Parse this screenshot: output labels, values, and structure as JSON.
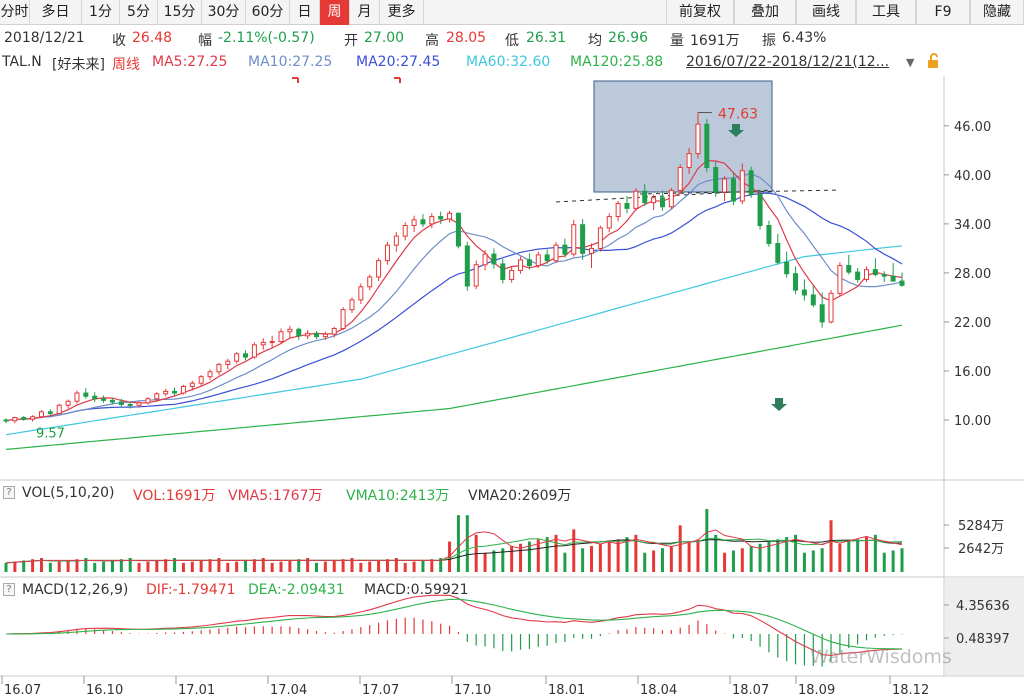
{
  "toolbar": {
    "tabs": [
      {
        "label": "分时",
        "name": "tab-timeshare"
      },
      {
        "label": "多日",
        "name": "tab-multiday"
      },
      {
        "label": "1分",
        "name": "tab-1min"
      },
      {
        "label": "5分",
        "name": "tab-5min"
      },
      {
        "label": "15分",
        "name": "tab-15min"
      },
      {
        "label": "30分",
        "name": "tab-30min"
      },
      {
        "label": "60分",
        "name": "tab-60min"
      },
      {
        "label": "日",
        "name": "tab-day"
      },
      {
        "label": "周",
        "name": "tab-week",
        "active": true
      },
      {
        "label": "月",
        "name": "tab-month"
      },
      {
        "label": "更多",
        "name": "tab-more"
      }
    ],
    "right_buttons": [
      {
        "label": "前复权",
        "name": "forward-adjust-button"
      },
      {
        "label": "叠加",
        "name": "overlay-button"
      },
      {
        "label": "画线",
        "name": "draw-line-button"
      },
      {
        "label": "工具",
        "name": "tools-button"
      },
      {
        "label": "F9",
        "name": "f9-button"
      },
      {
        "label": "隐藏",
        "name": "hide-button"
      }
    ]
  },
  "quote": {
    "date": "2018/12/21",
    "close_label": "收",
    "close": "26.48",
    "change_label": "幅",
    "change": "-2.11%(-0.57)",
    "open_label": "开",
    "open": "27.00",
    "high_label": "高",
    "high": "28.05",
    "low_label": "低",
    "low": "26.31",
    "avg_label": "均",
    "avg": "26.96",
    "vol_label": "量",
    "vol": "1691万",
    "amp_label": "振",
    "amp": "6.43%"
  },
  "ma_legend": {
    "symbol": "TAL.N",
    "name": "[好未来]",
    "period": "周线",
    "ma5": "MA5:27.25",
    "ma10": "MA10:27.25",
    "ma20": "MA20:27.45",
    "ma60": "MA60:32.60",
    "ma120": "MA120:25.88",
    "range": "2016/07/22-2018/12/21(12..."
  },
  "price_axis": {
    "ticks": [
      "46.00",
      "40.00",
      "34.00",
      "28.00",
      "22.00",
      "16.00",
      "10.00"
    ],
    "tick_values": [
      46,
      40,
      34,
      28,
      22,
      16,
      10
    ],
    "ylim": [
      2.9,
      52.1
    ]
  },
  "annotations": {
    "high_label": "47.63",
    "low_label": "9.57"
  },
  "vol_panel": {
    "head": "VOL(5,10,20)",
    "vol": "VOL:1691万",
    "vma5": "VMA5:1767万",
    "vma10": "VMA10:2413万",
    "vma20": "VMA20:2609万",
    "ticks": [
      "5284万",
      "2642万"
    ]
  },
  "macd_panel": {
    "head": "MACD(12,26,9)",
    "dif": "DIF:-1.79471",
    "dea": "DEA:-2.09431",
    "macd": "MACD:0.59921",
    "ticks": [
      "4.35636",
      "0.48397"
    ]
  },
  "x_axis": {
    "ticks": [
      "16.07",
      "16.10",
      "17.01",
      "17.04",
      "17.07",
      "17.10",
      "18.01",
      "18.04",
      "18.07",
      "18.09",
      "18.12"
    ]
  },
  "watermark": "WaterWisdoms",
  "colors": {
    "up": "#e53935",
    "down": "#1e9e4a",
    "ma5": "#e0394a",
    "ma10": "#6f8fc9",
    "ma20": "#3b4fd6",
    "ma60": "#3fc7e0",
    "ma120": "#2db34a",
    "highlight": "#5f7fa8"
  },
  "chart_data": {
    "type": "candlestick",
    "title": "TAL.N [好未来] 周线",
    "x_ticks": [
      "16.07",
      "16.10",
      "17.01",
      "17.04",
      "17.07",
      "17.10",
      "18.01",
      "18.04",
      "18.07",
      "18.09",
      "18.12"
    ],
    "ohlc_weekly_approx": [
      [
        10.0,
        10.2,
        9.6,
        9.9
      ],
      [
        9.9,
        10.4,
        9.6,
        10.3
      ],
      [
        10.3,
        10.5,
        9.9,
        10.1
      ],
      [
        10.1,
        10.6,
        9.8,
        10.4
      ],
      [
        10.4,
        11.2,
        10.2,
        11.0
      ],
      [
        11.0,
        11.3,
        10.5,
        10.8
      ],
      [
        10.8,
        12.0,
        10.7,
        11.8
      ],
      [
        11.8,
        12.5,
        11.4,
        12.3
      ],
      [
        12.3,
        13.6,
        12.0,
        13.3
      ],
      [
        13.3,
        13.9,
        12.6,
        12.9
      ],
      [
        12.9,
        13.4,
        12.2,
        12.6
      ],
      [
        12.6,
        13.0,
        12.1,
        12.4
      ],
      [
        12.4,
        12.7,
        11.9,
        12.2
      ],
      [
        12.2,
        12.6,
        11.6,
        11.9
      ],
      [
        11.9,
        12.3,
        11.4,
        11.8
      ],
      [
        11.8,
        12.3,
        11.5,
        12.1
      ],
      [
        12.1,
        12.8,
        11.9,
        12.6
      ],
      [
        12.6,
        13.4,
        12.3,
        13.2
      ],
      [
        13.2,
        13.8,
        12.9,
        13.5
      ],
      [
        13.5,
        14.0,
        13.0,
        13.3
      ],
      [
        13.3,
        14.3,
        13.1,
        14.1
      ],
      [
        14.1,
        14.8,
        13.6,
        14.5
      ],
      [
        14.5,
        15.5,
        14.2,
        15.3
      ],
      [
        15.3,
        16.2,
        14.9,
        15.9
      ],
      [
        15.9,
        17.0,
        15.5,
        16.8
      ],
      [
        16.8,
        17.5,
        16.2,
        17.2
      ],
      [
        17.2,
        18.3,
        16.9,
        18.1
      ],
      [
        18.1,
        18.5,
        17.3,
        17.7
      ],
      [
        17.7,
        19.5,
        17.5,
        19.2
      ],
      [
        19.2,
        20.0,
        18.6,
        19.5
      ],
      [
        19.5,
        20.3,
        18.9,
        19.6
      ],
      [
        19.6,
        21.2,
        19.3,
        20.8
      ],
      [
        20.8,
        21.5,
        20.1,
        21.1
      ],
      [
        21.1,
        21.3,
        19.8,
        20.3
      ],
      [
        20.3,
        21.0,
        19.9,
        20.6
      ],
      [
        20.6,
        20.9,
        19.9,
        20.2
      ],
      [
        20.2,
        20.8,
        19.8,
        20.5
      ],
      [
        20.5,
        21.4,
        20.1,
        21.2
      ],
      [
        21.2,
        23.8,
        21.0,
        23.5
      ],
      [
        23.5,
        25.0,
        23.1,
        24.7
      ],
      [
        24.7,
        26.7,
        24.2,
        26.3
      ],
      [
        26.3,
        27.8,
        25.9,
        27.5
      ],
      [
        27.5,
        29.8,
        27.0,
        29.5
      ],
      [
        29.5,
        31.8,
        29.0,
        31.4
      ],
      [
        31.4,
        33.0,
        30.6,
        32.5
      ],
      [
        32.5,
        34.2,
        32.0,
        33.8
      ],
      [
        33.8,
        35.0,
        33.0,
        34.5
      ],
      [
        34.5,
        35.2,
        33.6,
        34.0
      ],
      [
        34.0,
        35.3,
        33.5,
        34.9
      ],
      [
        34.9,
        35.5,
        34.0,
        34.6
      ],
      [
        34.6,
        35.6,
        34.2,
        35.3
      ],
      [
        35.3,
        35.4,
        31.0,
        31.3
      ],
      [
        31.3,
        31.8,
        25.8,
        26.4
      ],
      [
        26.4,
        29.5,
        26.0,
        29.0
      ],
      [
        29.0,
        30.8,
        28.3,
        30.3
      ],
      [
        30.3,
        31.0,
        28.5,
        29.1
      ],
      [
        29.1,
        29.7,
        26.7,
        27.2
      ],
      [
        27.2,
        28.8,
        26.8,
        28.3
      ],
      [
        28.3,
        30.0,
        27.9,
        29.6
      ],
      [
        29.6,
        30.4,
        28.4,
        28.9
      ],
      [
        28.9,
        30.6,
        28.6,
        30.2
      ],
      [
        30.2,
        30.9,
        29.1,
        29.5
      ],
      [
        29.5,
        31.8,
        29.2,
        31.4
      ],
      [
        31.4,
        32.2,
        29.9,
        30.3
      ],
      [
        30.3,
        34.5,
        30.0,
        33.9
      ],
      [
        33.9,
        34.6,
        29.6,
        30.4
      ],
      [
        30.4,
        31.6,
        28.6,
        31.0
      ],
      [
        31.0,
        33.8,
        30.6,
        33.5
      ],
      [
        33.5,
        35.3,
        33.0,
        34.9
      ],
      [
        34.9,
        36.8,
        34.3,
        36.5
      ],
      [
        36.5,
        37.4,
        35.3,
        35.9
      ],
      [
        35.9,
        38.4,
        35.6,
        38.0
      ],
      [
        38.0,
        38.9,
        36.2,
        36.6
      ],
      [
        36.6,
        37.6,
        35.7,
        37.2
      ],
      [
        37.2,
        38.1,
        35.6,
        36.1
      ],
      [
        36.1,
        38.4,
        35.8,
        38.1
      ],
      [
        38.1,
        41.3,
        37.8,
        40.9
      ],
      [
        40.9,
        43.3,
        40.1,
        42.6
      ],
      [
        42.6,
        47.63,
        42.0,
        46.2
      ],
      [
        46.2,
        46.8,
        40.3,
        40.9
      ],
      [
        40.9,
        41.6,
        37.3,
        37.9
      ],
      [
        37.9,
        39.9,
        36.8,
        39.5
      ],
      [
        39.5,
        40.3,
        36.3,
        36.8
      ],
      [
        36.8,
        41.4,
        36.4,
        40.5
      ],
      [
        40.5,
        41.0,
        37.2,
        37.6
      ],
      [
        37.6,
        38.2,
        33.3,
        33.8
      ],
      [
        33.8,
        34.4,
        31.2,
        31.6
      ],
      [
        31.6,
        32.8,
        29.0,
        29.3
      ],
      [
        29.3,
        30.6,
        27.4,
        27.9
      ],
      [
        27.9,
        28.8,
        25.4,
        25.9
      ],
      [
        25.9,
        27.2,
        24.6,
        25.3
      ],
      [
        25.3,
        26.4,
        23.8,
        24.1
      ],
      [
        24.1,
        25.6,
        21.3,
        22.0
      ],
      [
        22.0,
        25.9,
        21.8,
        25.5
      ],
      [
        25.5,
        29.3,
        25.2,
        28.9
      ],
      [
        28.9,
        30.2,
        27.8,
        28.1
      ],
      [
        28.1,
        28.6,
        26.8,
        27.2
      ],
      [
        27.2,
        28.8,
        26.9,
        28.4
      ],
      [
        28.4,
        29.8,
        27.6,
        27.8
      ],
      [
        27.8,
        28.2,
        26.9,
        27.6
      ],
      [
        27.6,
        29.2,
        27.2,
        27.0
      ],
      [
        27.0,
        28.05,
        26.31,
        26.48
      ]
    ],
    "ma": {
      "MA5": 27.25,
      "MA10": 27.25,
      "MA20": 27.45,
      "MA60": 32.6,
      "MA120": 25.88
    },
    "ylim": [
      2.9,
      52.1
    ],
    "annotated_high": 47.63,
    "annotated_low": 9.57
  }
}
